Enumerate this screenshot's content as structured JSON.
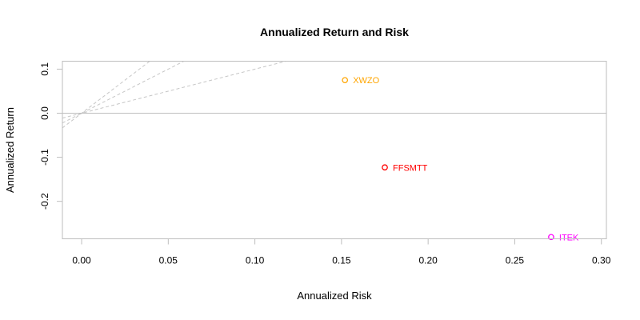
{
  "figure": {
    "background": "#ffffff"
  },
  "chart_data": {
    "type": "scatter",
    "title": "Annualized Return and Risk",
    "xlabel": "Annualized Risk",
    "ylabel": "Annualized Return",
    "xlim": [
      -0.0111,
      0.3029
    ],
    "ylim": [
      -0.285,
      0.118
    ],
    "x_ticks": [
      {
        "value": 0.0,
        "label": "0.00"
      },
      {
        "value": 0.05,
        "label": "0.05"
      },
      {
        "value": 0.1,
        "label": "0.10"
      },
      {
        "value": 0.15,
        "label": "0.15"
      },
      {
        "value": 0.2,
        "label": "0.20"
      },
      {
        "value": 0.25,
        "label": "0.25"
      },
      {
        "value": 0.3,
        "label": "0.30"
      }
    ],
    "y_ticks": [
      {
        "value": 0.1,
        "label": "0.1"
      },
      {
        "value": 0.0,
        "label": "0.0"
      },
      {
        "value": -0.1,
        "label": "-0.1"
      },
      {
        "value": -0.2,
        "label": "-0.2"
      }
    ],
    "points": [
      {
        "label": "XWZO",
        "x": 0.152,
        "y": 0.075,
        "color": "#ffa500"
      },
      {
        "label": "FFSMTT",
        "x": 0.175,
        "y": -0.123,
        "color": "#ff0000"
      },
      {
        "label": "ITEK",
        "x": 0.271,
        "y": -0.281,
        "color": "#ff00ff"
      }
    ],
    "zero_line_y": 0,
    "sharpe_ratio_line_slopes": [
      1,
      2,
      3
    ],
    "grid": false,
    "legend_position": "none",
    "colors": {
      "axis": "#bebebe",
      "dashed": "#c6c6c6",
      "tick_text": "#000000"
    }
  }
}
